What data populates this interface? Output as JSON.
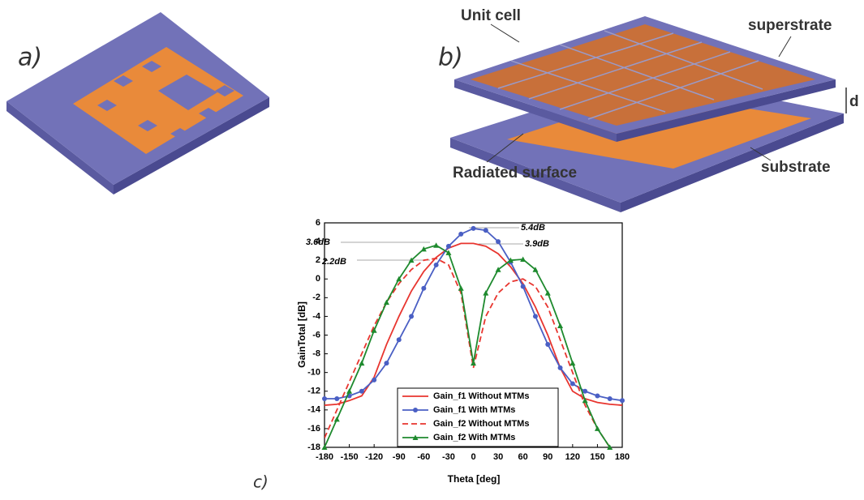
{
  "panels": {
    "a": {
      "label": "a)"
    },
    "b": {
      "label": "b)",
      "annotations": [
        "Unit cell",
        "superstrate",
        "d",
        "Radiated surface",
        "substrate"
      ]
    },
    "c": {
      "label": "c)"
    }
  },
  "chart_data": {
    "type": "line",
    "xlabel": "Theta [deg]",
    "ylabel": "GainTotal [dB]",
    "x": [
      -180,
      -165,
      -150,
      -135,
      -120,
      -105,
      -90,
      -75,
      -60,
      -45,
      -30,
      -15,
      0,
      15,
      30,
      45,
      60,
      75,
      90,
      105,
      120,
      135,
      150,
      165,
      180
    ],
    "series": [
      {
        "name": "Gain_f1 Without MTMs",
        "color": "#e8352f",
        "style": "solid",
        "marker": null,
        "values": [
          -13.5,
          -13.4,
          -13,
          -12.5,
          -10.5,
          -7,
          -4,
          -1.3,
          0.8,
          2.3,
          3.3,
          3.8,
          3.8,
          3.5,
          2.7,
          1.3,
          -0.5,
          -3,
          -6,
          -9.5,
          -12,
          -12.8,
          -13.2,
          -13.4,
          -13.5
        ]
      },
      {
        "name": "Gain_f1 With MTMs",
        "color": "#4a5fc4",
        "style": "solid",
        "marker": "circle",
        "values": [
          -12.8,
          -12.8,
          -12.5,
          -12,
          -10.8,
          -9,
          -6.5,
          -4,
          -1,
          1.5,
          3.5,
          4.8,
          5.4,
          5.2,
          4,
          1.8,
          -0.8,
          -4,
          -7,
          -9.5,
          -11.2,
          -12,
          -12.5,
          -12.8,
          -13
        ]
      },
      {
        "name": "Gain_f2 Without MTMs",
        "color": "#e8352f",
        "style": "dashed",
        "marker": null,
        "values": [
          -17,
          -14,
          -11,
          -8,
          -5,
          -2.5,
          -0.5,
          1,
          2,
          2.2,
          1.5,
          -1.5,
          -9.5,
          -4,
          -1.5,
          -0.3,
          0,
          -0.8,
          -3,
          -6.5,
          -10,
          -13.5,
          -16,
          -18,
          null
        ]
      },
      {
        "name": "Gain_f2 With MTMs",
        "color": "#1e8a2e",
        "style": "solid",
        "marker": "triangle",
        "values": [
          -18,
          -15,
          -12,
          -9,
          -5.5,
          -2.5,
          0,
          2,
          3.2,
          3.6,
          2.8,
          -1,
          -9,
          -1.5,
          1,
          2,
          2.1,
          1,
          -1.5,
          -5,
          -9,
          -13,
          -16,
          -18,
          null
        ]
      }
    ],
    "xlim": [
      -180,
      180
    ],
    "ylim": [
      -18,
      6
    ],
    "xticks": [
      -180,
      -150,
      -120,
      -90,
      -60,
      -30,
      0,
      30,
      60,
      90,
      120,
      150,
      180
    ],
    "yticks": [
      -18,
      -16,
      -14,
      -12,
      -10,
      -8,
      -6,
      -4,
      -2,
      0,
      2,
      4,
      6
    ],
    "annotations": [
      "5.4dB",
      "3.6dB",
      "3.9dB",
      "2.2dB"
    ],
    "legend": "lower center"
  }
}
